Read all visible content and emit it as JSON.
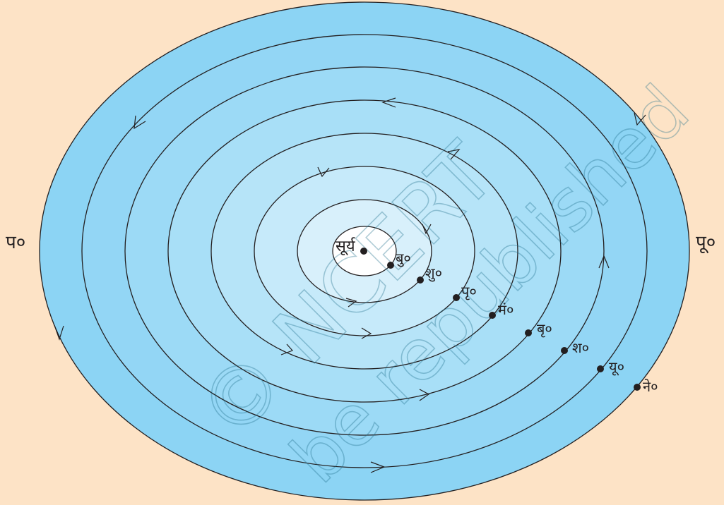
{
  "diagram": {
    "sun_label": "सूर्य",
    "west_label": "प०",
    "east_label": "पू०",
    "planets": [
      {
        "key": "mercury",
        "label": "बु०"
      },
      {
        "key": "venus",
        "label": "शु०"
      },
      {
        "key": "earth",
        "label": "पृ०"
      },
      {
        "key": "mars",
        "label": "मं०"
      },
      {
        "key": "jupiter",
        "label": "बृ०"
      },
      {
        "key": "saturn",
        "label": "श०"
      },
      {
        "key": "uranus",
        "label": "यू०"
      },
      {
        "key": "neptune",
        "label": "ने०"
      }
    ]
  },
  "watermark": {
    "line1": "© NCERT",
    "line2": "be republished"
  },
  "colors": {
    "background": "#fde3c6",
    "ring_outer": "#8fd3f3",
    "ring_inner": "#e8f6fd",
    "center": "#ffffff",
    "line": "#231f20"
  }
}
